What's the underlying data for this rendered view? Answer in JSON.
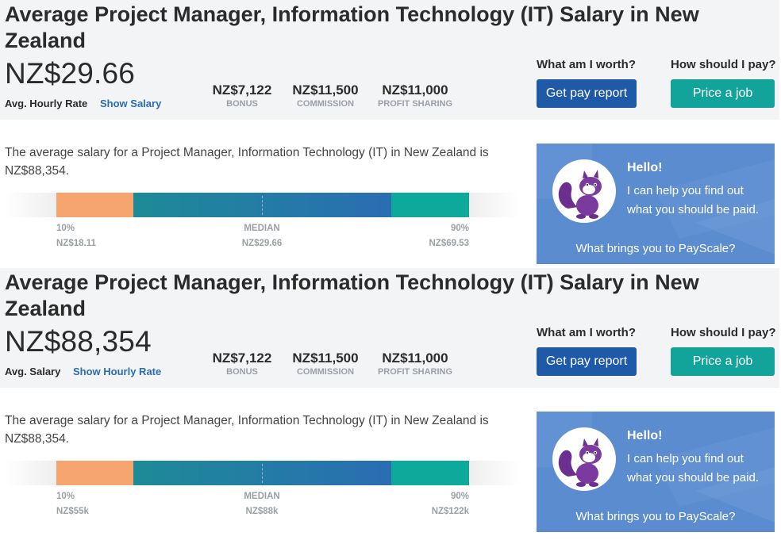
{
  "sections": [
    {
      "title": "Average Project Manager, Information Technology (IT) Salary in New Zealand",
      "amount": "NZ$29.66",
      "rate_label": "Avg. Hourly Rate",
      "toggle_link": "Show Salary",
      "stats": [
        {
          "value": "NZ$7,122",
          "label": "BONUS"
        },
        {
          "value": "NZ$11,500",
          "label": "COMMISSION"
        },
        {
          "value": "NZ$11,000",
          "label": "PROFIT SHARING"
        }
      ],
      "worth_question": "What am I worth?",
      "worth_button": "Get pay report",
      "pay_question": "How should I pay?",
      "pay_button": "Price a job",
      "description": "The average salary for a Project Manager, Information Technology (IT) in New Zealand is NZ$88,354.",
      "range": {
        "p10_label": "10%",
        "p10_value": "NZ$18.11",
        "median_label": "MEDIAN",
        "median_value": "NZ$29.66",
        "p90_label": "90%",
        "p90_value": "NZ$69.53"
      },
      "promo": {
        "hello": "Hello!",
        "text": "I can help you find out what you should be paid.",
        "cta": "What brings you to PayScale?"
      }
    },
    {
      "title": "Average Project Manager, Information Technology (IT) Salary in New Zealand",
      "amount": "NZ$88,354",
      "rate_label": "Avg. Salary",
      "toggle_link": "Show Hourly Rate",
      "stats": [
        {
          "value": "NZ$7,122",
          "label": "BONUS"
        },
        {
          "value": "NZ$11,500",
          "label": "COMMISSION"
        },
        {
          "value": "NZ$11,000",
          "label": "PROFIT SHARING"
        }
      ],
      "worth_question": "What am I worth?",
      "worth_button": "Get pay report",
      "pay_question": "How should I pay?",
      "pay_button": "Price a job",
      "description": "The average salary for a Project Manager, Information Technology (IT) in New Zealand is NZ$88,354.",
      "range": {
        "p10_label": "10%",
        "p10_value": "NZ$55k",
        "median_label": "MEDIAN",
        "median_value": "NZ$88k",
        "p90_label": "90%",
        "p90_value": "NZ$122k"
      },
      "promo": {
        "hello": "Hello!",
        "text": "I can help you find out what you should be paid.",
        "cta": "What brings you to PayScale?"
      }
    }
  ],
  "colors": {
    "header_bg": "#f3f4f6",
    "link": "#2a6db3",
    "button_blue": "#1f5aa8",
    "button_teal": "#12a39a",
    "bar_p10": "#f6a56e",
    "bar_median_start": "#1d8b97",
    "bar_median_end": "#2a6db3",
    "bar_p90": "#0da99b",
    "promo_bg": "#5b8cd0",
    "mascot": "#6b2f8f"
  },
  "icons": {
    "mascot": "squirrel-mascot-icon"
  }
}
